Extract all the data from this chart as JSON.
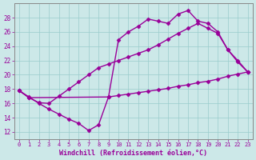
{
  "background_color": "#cce8e8",
  "grid_color": "#99cccc",
  "line_color": "#990099",
  "marker": "D",
  "markersize": 2.5,
  "linewidth": 1.0,
  "xlabel": "Windchill (Refroidissement éolien,°C)",
  "xlim": [
    -0.5,
    23.5
  ],
  "ylim": [
    11,
    30
  ],
  "yticks": [
    12,
    14,
    16,
    18,
    20,
    22,
    24,
    26,
    28
  ],
  "xticks": [
    0,
    1,
    2,
    3,
    4,
    5,
    6,
    7,
    8,
    9,
    10,
    11,
    12,
    13,
    14,
    15,
    16,
    17,
    18,
    19,
    20,
    21,
    22,
    23
  ],
  "series1": [
    [
      0,
      17.8
    ],
    [
      1,
      16.9
    ],
    [
      2,
      16.0
    ],
    [
      3,
      15.2
    ],
    [
      4,
      14.5
    ],
    [
      5,
      13.8
    ],
    [
      6,
      13.2
    ],
    [
      7,
      12.2
    ],
    [
      8,
      13.0
    ],
    [
      9,
      16.9
    ],
    [
      10,
      17.1
    ],
    [
      11,
      17.3
    ],
    [
      12,
      17.5
    ],
    [
      13,
      17.7
    ],
    [
      14,
      17.9
    ],
    [
      15,
      18.1
    ],
    [
      16,
      18.4
    ],
    [
      17,
      18.6
    ],
    [
      18,
      18.9
    ],
    [
      19,
      19.1
    ],
    [
      20,
      19.4
    ],
    [
      21,
      19.8
    ],
    [
      22,
      20.1
    ],
    [
      23,
      20.4
    ]
  ],
  "series2": [
    [
      0,
      17.8
    ],
    [
      1,
      16.8
    ],
    [
      2,
      16.1
    ],
    [
      3,
      16.0
    ],
    [
      4,
      17.0
    ],
    [
      5,
      18.0
    ],
    [
      6,
      19.0
    ],
    [
      7,
      20.0
    ],
    [
      8,
      21.0
    ],
    [
      9,
      21.5
    ],
    [
      10,
      22.0
    ],
    [
      11,
      22.5
    ],
    [
      12,
      23.0
    ],
    [
      13,
      23.5
    ],
    [
      14,
      24.2
    ],
    [
      15,
      25.0
    ],
    [
      16,
      25.8
    ],
    [
      17,
      26.5
    ],
    [
      18,
      27.2
    ],
    [
      19,
      26.5
    ],
    [
      20,
      25.8
    ],
    [
      21,
      23.5
    ],
    [
      22,
      21.8
    ],
    [
      23,
      20.4
    ]
  ],
  "series3": [
    [
      0,
      17.8
    ],
    [
      1,
      16.8
    ],
    [
      9,
      16.9
    ],
    [
      10,
      24.9
    ],
    [
      11,
      26.0
    ],
    [
      12,
      26.8
    ],
    [
      13,
      27.8
    ],
    [
      14,
      27.5
    ],
    [
      15,
      27.2
    ],
    [
      16,
      28.5
    ],
    [
      17,
      29.0
    ],
    [
      18,
      27.5
    ],
    [
      19,
      27.2
    ],
    [
      20,
      26.0
    ],
    [
      21,
      23.5
    ],
    [
      22,
      22.0
    ],
    [
      23,
      20.4
    ]
  ]
}
